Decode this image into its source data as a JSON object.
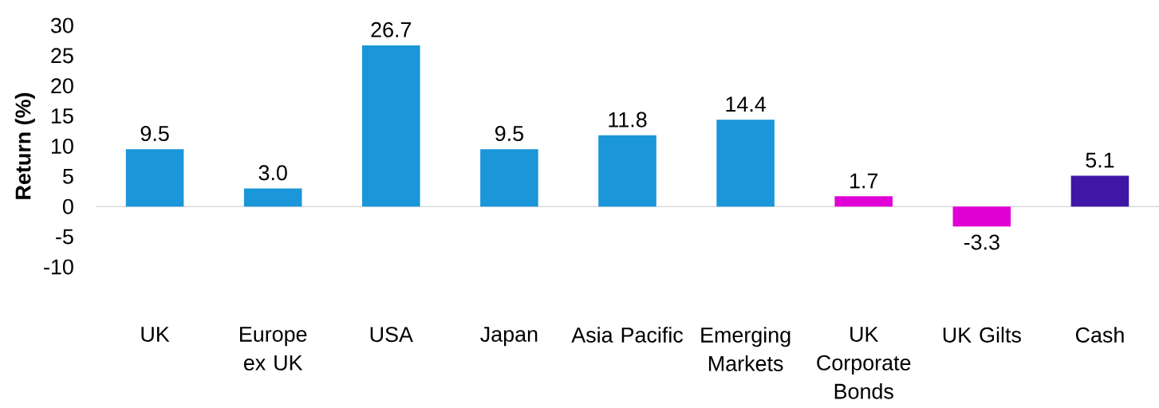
{
  "chart_data": {
    "type": "bar",
    "ylabel": "Return (%)",
    "categories": [
      "UK",
      "Europe ex UK",
      "USA",
      "Japan",
      "Asia Pacific",
      "Emerging Markets",
      "UK Corporate Bonds",
      "UK Gilts",
      "Cash"
    ],
    "values": [
      9.5,
      3.0,
      26.7,
      9.5,
      11.8,
      14.4,
      1.7,
      -3.3,
      5.1
    ],
    "value_labels": [
      "9.5",
      "3.0",
      "26.7",
      "9.5",
      "11.8",
      "14.4",
      "1.7",
      "-3.3",
      "5.1"
    ],
    "colors": [
      "#1a96d9",
      "#1a96d9",
      "#1a96d9",
      "#1a96d9",
      "#1a96d9",
      "#1a96d9",
      "#e000d6",
      "#e000d6",
      "#3e17a6"
    ],
    "ylim": [
      -10,
      30
    ],
    "yticks": [
      -10,
      -5,
      0,
      5,
      10,
      15,
      20,
      25,
      30
    ]
  }
}
